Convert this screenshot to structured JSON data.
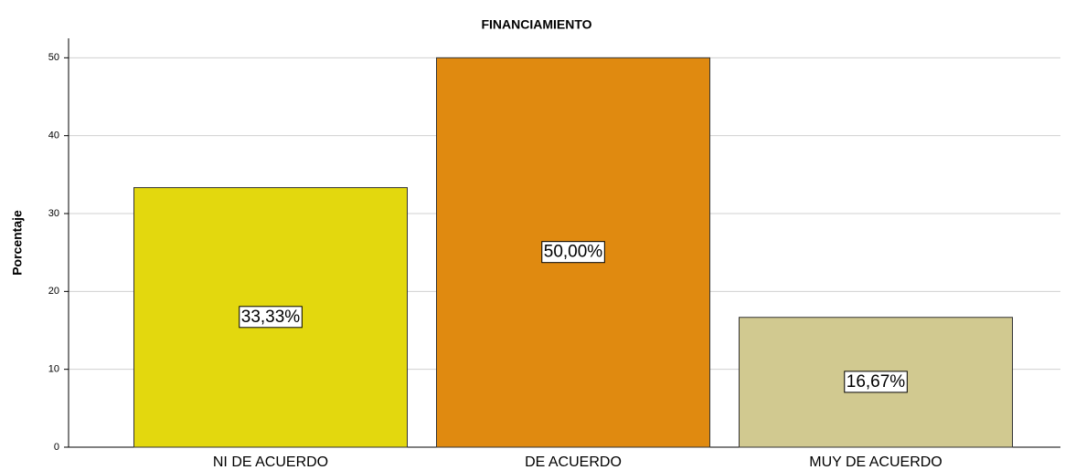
{
  "chart_data": {
    "type": "bar",
    "title": "FINANCIAMIENTO",
    "y_label": "Porcentaje",
    "categories": [
      "NI DE ACUERDO",
      "DE ACUERDO",
      "MUY DE ACUERDO"
    ],
    "values": [
      33.33,
      50,
      16.67
    ],
    "value_labels": [
      "33,33%",
      "50,00%",
      "16,67%"
    ],
    "colors": [
      "#e3d80e",
      "#e08a10",
      "#d1c990"
    ],
    "ylim": [
      0,
      52.5
    ],
    "yticks": [
      0,
      10,
      20,
      30,
      40,
      50
    ],
    "grid": true
  }
}
